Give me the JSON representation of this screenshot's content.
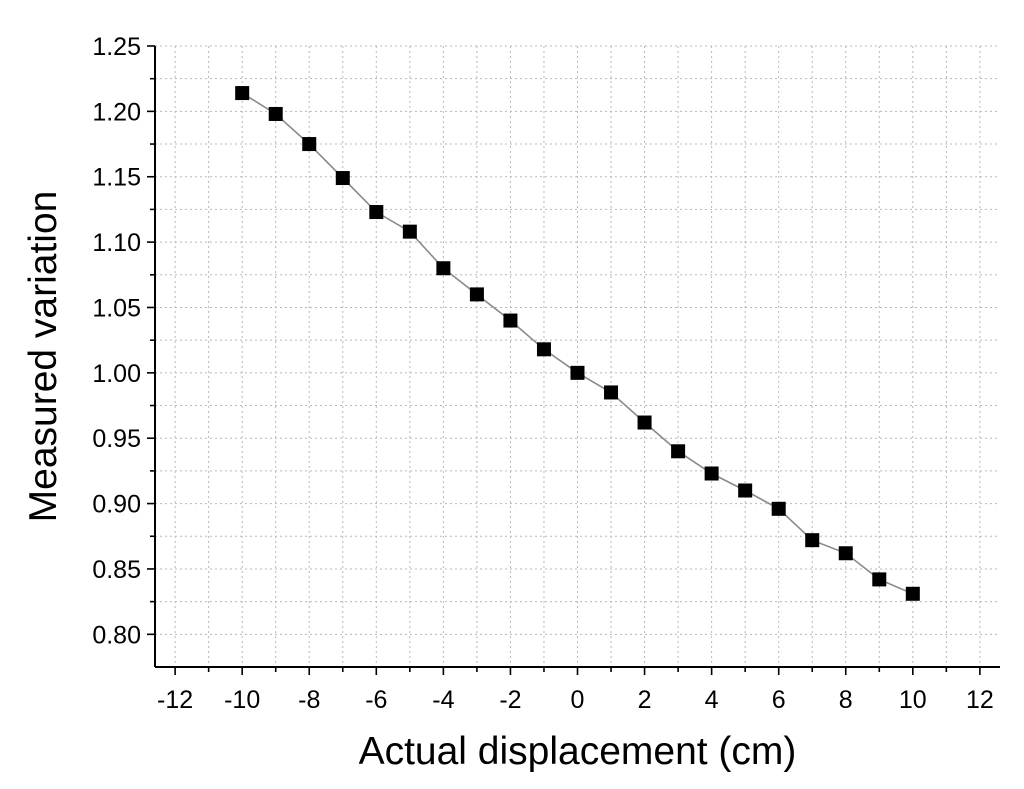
{
  "chart_data": {
    "type": "line",
    "xlabel": "Actual displacement (cm)",
    "ylabel": "Measured variation",
    "xlim": [
      -12.6,
      12.6
    ],
    "ylim": [
      0.775,
      1.25
    ],
    "xticks": [
      -12,
      -10,
      -8,
      -6,
      -4,
      -2,
      0,
      2,
      4,
      6,
      8,
      10,
      12
    ],
    "yticks": [
      0.8,
      0.85,
      0.9,
      0.95,
      1.0,
      1.05,
      1.1,
      1.15,
      1.2,
      1.25
    ],
    "xtick_labels": [
      "-12",
      "-10",
      "-8",
      "-6",
      "-4",
      "-2",
      "0",
      "2",
      "4",
      "6",
      "8",
      "10",
      "12"
    ],
    "ytick_labels": [
      "0.80",
      "0.85",
      "0.90",
      "0.95",
      "1.00",
      "1.05",
      "1.10",
      "1.15",
      "1.20",
      "1.25"
    ],
    "grid": true,
    "marker": "square",
    "series": [
      {
        "x": [
          -10,
          -9,
          -8,
          -7,
          -6,
          -5,
          -4,
          -3,
          -2,
          -1,
          0,
          1,
          2,
          3,
          4,
          5,
          6,
          7,
          8,
          9,
          10
        ],
        "y": [
          1.214,
          1.198,
          1.175,
          1.149,
          1.123,
          1.108,
          1.08,
          1.06,
          1.04,
          1.018,
          1.0,
          0.985,
          0.962,
          0.94,
          0.923,
          0.91,
          0.896,
          0.872,
          0.862,
          0.842,
          0.831
        ],
        "marker_color": "#000000",
        "line_color": "#8a8a8a"
      }
    ]
  }
}
